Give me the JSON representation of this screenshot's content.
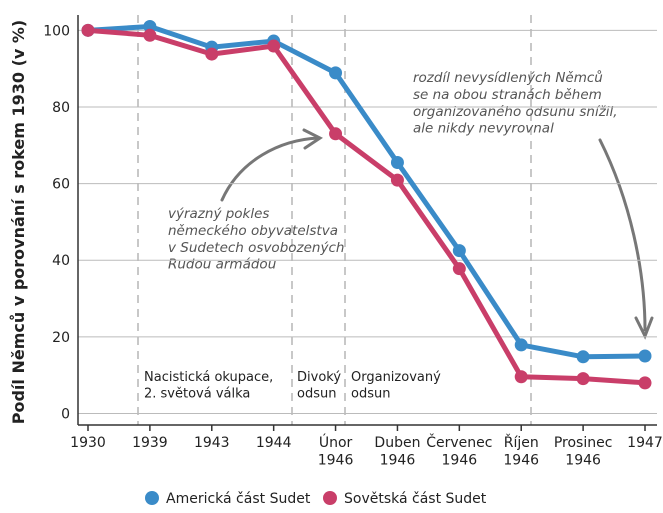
{
  "chart_data": {
    "type": "line",
    "ylabel": "Podíl Němců v porovnání s rokem 1930 (v %)",
    "categories": [
      "1930",
      "1939",
      "1943",
      "1944",
      "Únor\n1946",
      "Duben\n1946",
      "Červenec\n1946",
      "Říjen\n1946",
      "Prosinec\n1946",
      "1947"
    ],
    "series": [
      {
        "name": "Americká část Sudet",
        "color": "#3a8bc8",
        "values": [
          100,
          101,
          95.6,
          97.2,
          88.9,
          65.5,
          42.5,
          17.9,
          14.8,
          15
        ]
      },
      {
        "name": "Sovětská část Sudet",
        "color": "#c93e69",
        "values": [
          100,
          98.7,
          93.8,
          95.9,
          73,
          60.9,
          37.8,
          9.6,
          9.1,
          8
        ]
      }
    ],
    "ylim": [
      -3,
      104
    ],
    "yticks": [
      0,
      20,
      40,
      60,
      80,
      100
    ],
    "grid": true,
    "periods": [
      "Nacistická okupace,\n2. světová válka",
      "Divoký\nodsun",
      "Organizovaný\nodsun"
    ],
    "annotations": [
      "výrazný pokles\nněmeckého obyvatelstva\nv Sudetech osvobozených\nRudou armádou",
      "rozdíl nevysídlených Němců\nse na obou stranách během\norganizovaného odsunu snížil,\nale nikdy nevyrovnal"
    ]
  }
}
